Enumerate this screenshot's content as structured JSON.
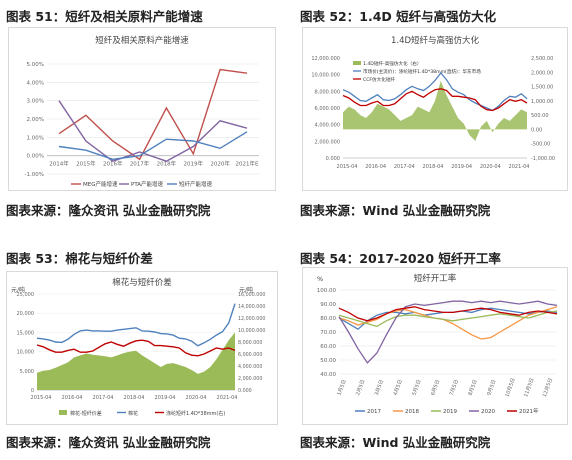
{
  "panels": [
    {
      "id": "p51",
      "figure_title": "图表 51：短纤及相关原料产能增速",
      "source": "图表来源：隆众资讯 弘业金融研究院"
    },
    {
      "id": "p52",
      "figure_title": "图表 52：1.4D 短纤与高强仿大化",
      "source": "图表来源：Wind 弘业金融研究院"
    },
    {
      "id": "p53",
      "figure_title": "图表 53：棉花与短纤价差",
      "source": "图表来源：隆众资讯 弘业金融研究院"
    },
    {
      "id": "p54",
      "figure_title": "图表 54：2017-2020 短纤开工率",
      "source": "图表来源：Wind 弘业金融研究院"
    }
  ],
  "chart_data": [
    {
      "type": "line",
      "title": "短纤及相关原料产能增速",
      "categories": [
        "2014年",
        "2015年",
        "2016年",
        "2017年",
        "2018年",
        "2019年",
        "2020年",
        "2021年E"
      ],
      "yticks": [
        "-1.00%",
        "0.00%",
        "1.00%",
        "2.00%",
        "3.00%",
        "4.00%",
        "5.00%"
      ],
      "ylim": [
        -1,
        5
      ],
      "series": [
        {
          "name": "MEG产能增速",
          "color": "#c0504d",
          "values": [
            1.2,
            2.2,
            0.8,
            -0.2,
            2.6,
            0.1,
            4.7,
            4.5
          ]
        },
        {
          "name": "PTA产能增速",
          "color": "#8064a2",
          "values": [
            3.0,
            0.8,
            -0.3,
            0.2,
            -0.3,
            0.5,
            1.9,
            1.5
          ]
        },
        {
          "name": "短纤产能增速",
          "color": "#4f81bd",
          "values": [
            0.5,
            0.3,
            -0.2,
            0.0,
            0.9,
            0.8,
            0.4,
            1.3
          ]
        }
      ],
      "legend": "bottom"
    },
    {
      "type": "area+line",
      "title": "1.4D短纤与高强仿大化",
      "xticks": [
        "2015-04",
        "2016-04",
        "2017-04",
        "2018-04",
        "2019-04",
        "2020-04",
        "2021-04"
      ],
      "yticks_left": [
        "0.000",
        "2,000.000",
        "4,000.000",
        "6,000.000",
        "8,000.000",
        "10,000.000",
        "12,000.000"
      ],
      "yticks_right": [
        "-1,000.00",
        "-500.00",
        "0.00",
        "500.00",
        "1,000.00",
        "1,500.00",
        "2,000.00",
        "2,500.00"
      ],
      "ylim_left": [
        0,
        12000
      ],
      "ylim_right": [
        -1000,
        2500
      ],
      "series": [
        {
          "name": "1.4D短纤-高强仿大化（右）",
          "color": "#9bbb59",
          "axis": "right",
          "kind": "area",
          "values": [
            600,
            800,
            700,
            500,
            400,
            600,
            900,
            800,
            700,
            500,
            300,
            400,
            500,
            800,
            700,
            600,
            1000,
            1700,
            1200,
            800,
            400,
            200,
            -200,
            -400,
            100,
            300,
            -100,
            200,
            400,
            300,
            500,
            700,
            600
          ]
        },
        {
          "name": "市场价(主流价)：涤纶短纤1.4D*38mm(直纺)：华东市场",
          "color": "#4f81bd",
          "axis": "left",
          "kind": "line",
          "values": [
            8200,
            7900,
            7400,
            6900,
            6800,
            7200,
            7600,
            7000,
            6900,
            7100,
            7600,
            8200,
            8600,
            8300,
            8100,
            8600,
            9300,
            10200,
            9400,
            8300,
            7900,
            7600,
            7000,
            6600,
            6300,
            6000,
            5700,
            6200,
            6900,
            7400,
            7300,
            7700,
            7100
          ]
        },
        {
          "name": "CCF仿大化短纤",
          "color": "#c00000",
          "axis": "left",
          "kind": "line",
          "values": [
            7500,
            7200,
            6700,
            6300,
            6300,
            6600,
            6800,
            6300,
            6300,
            6500,
            7100,
            7700,
            8000,
            7600,
            7300,
            7800,
            8200,
            8300,
            8100,
            7400,
            7400,
            7300,
            7200,
            7000,
            6200,
            5800,
            5700,
            6000,
            6500,
            7000,
            6800,
            7000,
            6600
          ]
        }
      ],
      "legend": "top-left"
    },
    {
      "type": "area+line",
      "title": "棉花与短纤价差",
      "ylabel_left": "元/吨",
      "ylabel_right": "元/吨",
      "xticks": [
        "2015-04",
        "2016-04",
        "2017-04",
        "2018-04",
        "2019-04",
        "2020-04",
        "2021-04"
      ],
      "yticks_left": [
        "0",
        "5,000",
        "10,000",
        "15,000",
        "20,000",
        "25,000"
      ],
      "yticks_right": [
        "0.000",
        "2,000.000",
        "4,000.000",
        "6,000.000",
        "8,000.000",
        "10,000.000",
        "12,000.000",
        "14,000.000",
        "16,000.000"
      ],
      "ylim_left": [
        0,
        25000
      ],
      "ylim_right": [
        0,
        16000
      ],
      "series": [
        {
          "name": "棉花-短纤价差",
          "color": "#9bbb59",
          "axis": "left",
          "kind": "area",
          "values": [
            4500,
            5000,
            5200,
            5800,
            6500,
            7200,
            8500,
            9000,
            9500,
            9200,
            9000,
            8800,
            8500,
            9000,
            9600,
            10000,
            10200,
            9000,
            8000,
            7000,
            6000,
            6800,
            7000,
            6500,
            6000,
            5200,
            4200,
            4800,
            6000,
            8000,
            10500,
            13000,
            15000
          ]
        },
        {
          "name": "棉花",
          "color": "#4f81bd",
          "axis": "left",
          "kind": "line",
          "values": [
            13500,
            13300,
            13000,
            12500,
            12400,
            13200,
            14500,
            15400,
            15600,
            15400,
            15400,
            15300,
            15300,
            15600,
            15800,
            16000,
            16200,
            15400,
            15300,
            15100,
            14700,
            14600,
            14300,
            13500,
            13300,
            12700,
            11500,
            12300,
            13200,
            14300,
            15200,
            17500,
            22500
          ]
        },
        {
          "name": "涤纶短纤1.4D*38mm(右)",
          "color": "#c00000",
          "axis": "right",
          "kind": "line",
          "values": [
            7500,
            7200,
            6700,
            6300,
            6300,
            6600,
            6800,
            6300,
            6300,
            6500,
            7100,
            7700,
            8000,
            7600,
            7300,
            7800,
            8200,
            8300,
            8100,
            7400,
            7400,
            7300,
            7200,
            7000,
            6200,
            5800,
            5700,
            6000,
            6500,
            7000,
            6800,
            7000,
            6600
          ]
        }
      ],
      "legend": "bottom"
    },
    {
      "type": "line",
      "title": "短纤开工率",
      "ylabel": "%",
      "xticks": [
        "1月5日",
        "2月5日",
        "3月5日",
        "4月5日",
        "5月5日",
        "6月5日",
        "7月5日",
        "8月5日",
        "9月5日",
        "10月5日",
        "11月5日",
        "12月5日"
      ],
      "yticks": [
        "40.00",
        "50.00",
        "60.00",
        "70.00",
        "80.00",
        "90.00",
        "100.00"
      ],
      "ylim": [
        40,
        100
      ],
      "series": [
        {
          "name": "2017",
          "color": "#4f81bd",
          "values": [
            80,
            76,
            72,
            78,
            82,
            84,
            84,
            83,
            84,
            82,
            83,
            84,
            84,
            85,
            84,
            86,
            87,
            86,
            85,
            84,
            83,
            84,
            85,
            84
          ]
        },
        {
          "name": "2018",
          "color": "#f79646",
          "values": [
            80,
            78,
            75,
            77,
            79,
            83,
            85,
            86,
            84,
            82,
            80,
            79,
            76,
            72,
            68,
            65,
            66,
            70,
            74,
            78,
            82,
            84,
            86,
            88
          ]
        },
        {
          "name": "2019",
          "color": "#9bbb59",
          "values": [
            82,
            80,
            78,
            76,
            74,
            78,
            81,
            82,
            82,
            81,
            80,
            79,
            78,
            79,
            80,
            81,
            82,
            83,
            82,
            81,
            80,
            82,
            84,
            85
          ]
        },
        {
          "name": "2020",
          "color": "#8064a2",
          "values": [
            81,
            70,
            58,
            48,
            55,
            68,
            80,
            88,
            90,
            89,
            90,
            91,
            92,
            92,
            91,
            92,
            91,
            92,
            91,
            90,
            91,
            92,
            90,
            89
          ]
        },
        {
          "name": "2021年",
          "color": "#c00000",
          "values": [
            87,
            84,
            80,
            78,
            80,
            83,
            86,
            87,
            88,
            86,
            85,
            84,
            84,
            85,
            86,
            87,
            86,
            84,
            83,
            82,
            84,
            85,
            84,
            83
          ]
        }
      ],
      "legend": "bottom"
    }
  ]
}
